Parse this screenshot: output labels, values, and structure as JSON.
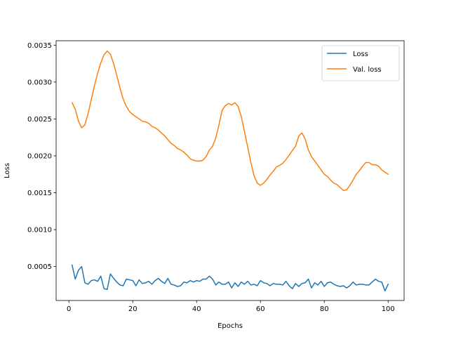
{
  "chart_data": {
    "type": "line",
    "xlabel": "Epochs",
    "ylabel": "Loss",
    "xlim": [
      -4,
      105
    ],
    "ylim": [
      4e-05,
      0.00356
    ],
    "xticks": [
      0,
      20,
      40,
      60,
      80,
      100
    ],
    "yticks": [
      0.0005,
      0.001,
      0.0015,
      0.002,
      0.0025,
      0.003,
      0.0035
    ],
    "ytick_labels": [
      "0.0005",
      "0.0010",
      "0.0015",
      "0.0020",
      "0.0025",
      "0.0030",
      "0.0035"
    ],
    "grid": false,
    "legend": {
      "position": "top-right"
    },
    "x": [
      1,
      2,
      3,
      4,
      5,
      6,
      7,
      8,
      9,
      10,
      11,
      12,
      13,
      14,
      15,
      16,
      17,
      18,
      19,
      20,
      21,
      22,
      23,
      24,
      25,
      26,
      27,
      28,
      29,
      30,
      31,
      32,
      33,
      34,
      35,
      36,
      37,
      38,
      39,
      40,
      41,
      42,
      43,
      44,
      45,
      46,
      47,
      48,
      49,
      50,
      51,
      52,
      53,
      54,
      55,
      56,
      57,
      58,
      59,
      60,
      61,
      62,
      63,
      64,
      65,
      66,
      67,
      68,
      69,
      70,
      71,
      72,
      73,
      74,
      75,
      76,
      77,
      78,
      79,
      80,
      81,
      82,
      83,
      84,
      85,
      86,
      87,
      88,
      89,
      90,
      91,
      92,
      93,
      94,
      95,
      96,
      97,
      98,
      99,
      100
    ],
    "series": [
      {
        "name": "Loss",
        "color": "#1f77b4",
        "values": [
          0.00052,
          0.00033,
          0.00045,
          0.0005,
          0.00028,
          0.00026,
          0.00031,
          0.00032,
          0.0003,
          0.00037,
          0.0002,
          0.00019,
          0.0004,
          0.00034,
          0.00029,
          0.00025,
          0.00024,
          0.00033,
          0.00032,
          0.00031,
          0.00024,
          0.00032,
          0.00027,
          0.00028,
          0.0003,
          0.00026,
          0.00031,
          0.00034,
          0.0003,
          0.00027,
          0.00034,
          0.00026,
          0.00025,
          0.00023,
          0.00024,
          0.00029,
          0.00028,
          0.00031,
          0.00029,
          0.00031,
          0.0003,
          0.00033,
          0.00033,
          0.00037,
          0.00033,
          0.00025,
          0.00029,
          0.00026,
          0.00026,
          0.00029,
          0.00021,
          0.00028,
          0.00023,
          0.00029,
          0.00026,
          0.0003,
          0.00025,
          0.00026,
          0.00024,
          0.00031,
          0.00028,
          0.00027,
          0.00024,
          0.00027,
          0.00026,
          0.00026,
          0.00025,
          0.0003,
          0.00024,
          0.0002,
          0.00027,
          0.00023,
          0.00027,
          0.00028,
          0.00033,
          0.00021,
          0.00028,
          0.00025,
          0.0003,
          0.00023,
          0.00028,
          0.00029,
          0.00026,
          0.00024,
          0.00023,
          0.00024,
          0.00021,
          0.00024,
          0.00029,
          0.00025,
          0.00026,
          0.00026,
          0.00025,
          0.00025,
          0.00029,
          0.00033,
          0.0003,
          0.00029,
          0.00017,
          0.00026
        ]
      },
      {
        "name": "Val. loss",
        "color": "#ff7f0e",
        "values": [
          0.00272,
          0.00263,
          0.00247,
          0.00238,
          0.00242,
          0.00257,
          0.00276,
          0.00295,
          0.00312,
          0.00326,
          0.00337,
          0.00342,
          0.00338,
          0.00325,
          0.00309,
          0.00292,
          0.00277,
          0.00267,
          0.0026,
          0.00256,
          0.00253,
          0.0025,
          0.00247,
          0.00246,
          0.00244,
          0.0024,
          0.00238,
          0.00235,
          0.00231,
          0.00227,
          0.00222,
          0.00217,
          0.00214,
          0.0021,
          0.00208,
          0.00205,
          0.00201,
          0.00196,
          0.00194,
          0.00193,
          0.00193,
          0.00194,
          0.00199,
          0.00208,
          0.00213,
          0.00224,
          0.00242,
          0.00262,
          0.00268,
          0.00271,
          0.00269,
          0.00272,
          0.00267,
          0.00253,
          0.00233,
          0.00212,
          0.00191,
          0.00173,
          0.00163,
          0.0016,
          0.00163,
          0.00168,
          0.00174,
          0.00179,
          0.00185,
          0.00187,
          0.0019,
          0.00195,
          0.00201,
          0.00207,
          0.00213,
          0.00227,
          0.00231,
          0.00223,
          0.00208,
          0.00199,
          0.00193,
          0.00187,
          0.00181,
          0.00175,
          0.00172,
          0.00167,
          0.00163,
          0.00161,
          0.00157,
          0.00153,
          0.00154,
          0.0016,
          0.00167,
          0.00175,
          0.0018,
          0.00186,
          0.00191,
          0.00191,
          0.00188,
          0.00188,
          0.00186,
          0.00181,
          0.00178,
          0.00175
        ]
      }
    ]
  }
}
